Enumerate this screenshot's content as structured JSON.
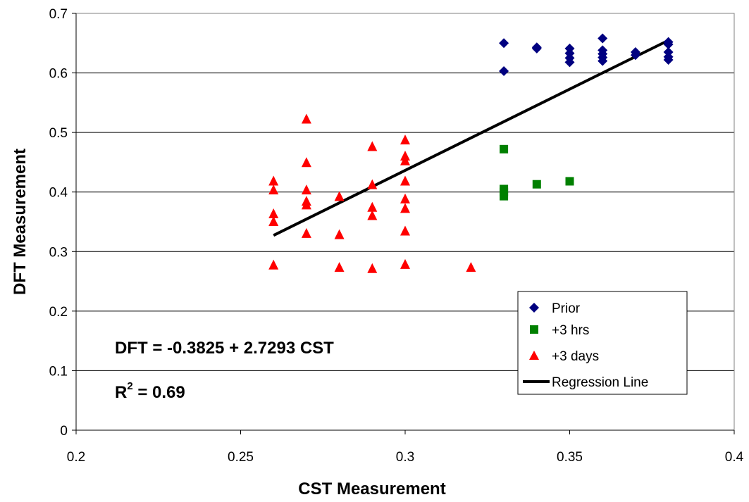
{
  "chart_data": {
    "type": "scatter",
    "xlabel": "CST Measurement",
    "ylabel": "DFT Measurement",
    "xlim": [
      0.2,
      0.4
    ],
    "ylim": [
      0,
      0.7
    ],
    "x_ticks": [
      0.2,
      0.25,
      0.3,
      0.35,
      0.4
    ],
    "x_tick_labels": [
      "0.2",
      "0.25",
      "0.3",
      "0.35",
      "0.4"
    ],
    "y_ticks": [
      0,
      0.1,
      0.2,
      0.3,
      0.4,
      0.5,
      0.6,
      0.7
    ],
    "y_tick_labels": [
      "0",
      "0.1",
      "0.2",
      "0.3",
      "0.4",
      "0.5",
      "0.6",
      "0.7"
    ],
    "grid": "horizontal",
    "legend_position": "bottom-right",
    "series": [
      {
        "name": "Prior",
        "marker": "diamond",
        "color": "#000080",
        "points": [
          [
            0.33,
            0.65
          ],
          [
            0.33,
            0.603
          ],
          [
            0.34,
            0.643
          ],
          [
            0.34,
            0.641
          ],
          [
            0.35,
            0.641
          ],
          [
            0.35,
            0.633
          ],
          [
            0.35,
            0.625
          ],
          [
            0.35,
            0.618
          ],
          [
            0.36,
            0.658
          ],
          [
            0.36,
            0.638
          ],
          [
            0.36,
            0.632
          ],
          [
            0.36,
            0.626
          ],
          [
            0.36,
            0.62
          ],
          [
            0.37,
            0.635
          ],
          [
            0.37,
            0.63
          ],
          [
            0.38,
            0.652
          ],
          [
            0.38,
            0.648
          ],
          [
            0.38,
            0.635
          ],
          [
            0.38,
            0.627
          ],
          [
            0.38,
            0.622
          ]
        ]
      },
      {
        "name": "+3 hrs",
        "marker": "square",
        "color": "#008000",
        "points": [
          [
            0.33,
            0.472
          ],
          [
            0.33,
            0.405
          ],
          [
            0.33,
            0.4
          ],
          [
            0.33,
            0.393
          ],
          [
            0.34,
            0.413
          ],
          [
            0.35,
            0.418
          ]
        ]
      },
      {
        "name": "+3 days",
        "marker": "triangle",
        "color": "#ff0000",
        "points": [
          [
            0.26,
            0.418
          ],
          [
            0.26,
            0.403
          ],
          [
            0.26,
            0.363
          ],
          [
            0.26,
            0.35
          ],
          [
            0.26,
            0.277
          ],
          [
            0.27,
            0.522
          ],
          [
            0.27,
            0.449
          ],
          [
            0.27,
            0.403
          ],
          [
            0.27,
            0.384
          ],
          [
            0.27,
            0.378
          ],
          [
            0.27,
            0.33
          ],
          [
            0.28,
            0.392
          ],
          [
            0.28,
            0.328
          ],
          [
            0.28,
            0.273
          ],
          [
            0.29,
            0.476
          ],
          [
            0.29,
            0.412
          ],
          [
            0.29,
            0.374
          ],
          [
            0.29,
            0.36
          ],
          [
            0.29,
            0.271
          ],
          [
            0.3,
            0.487
          ],
          [
            0.3,
            0.46
          ],
          [
            0.3,
            0.452
          ],
          [
            0.3,
            0.418
          ],
          [
            0.3,
            0.388
          ],
          [
            0.3,
            0.372
          ],
          [
            0.3,
            0.334
          ],
          [
            0.3,
            0.278
          ],
          [
            0.32,
            0.273
          ]
        ]
      }
    ],
    "regression": {
      "name": "Regression Line",
      "color": "#000000",
      "intercept": -0.3825,
      "slope": 2.7293,
      "x_range": [
        0.26,
        0.38
      ]
    },
    "annotations": {
      "equation": "DFT = -0.3825 + 2.7293 CST",
      "r2_prefix": "R",
      "r2_superscript": "2",
      "r2_value": " = 0.69"
    }
  }
}
